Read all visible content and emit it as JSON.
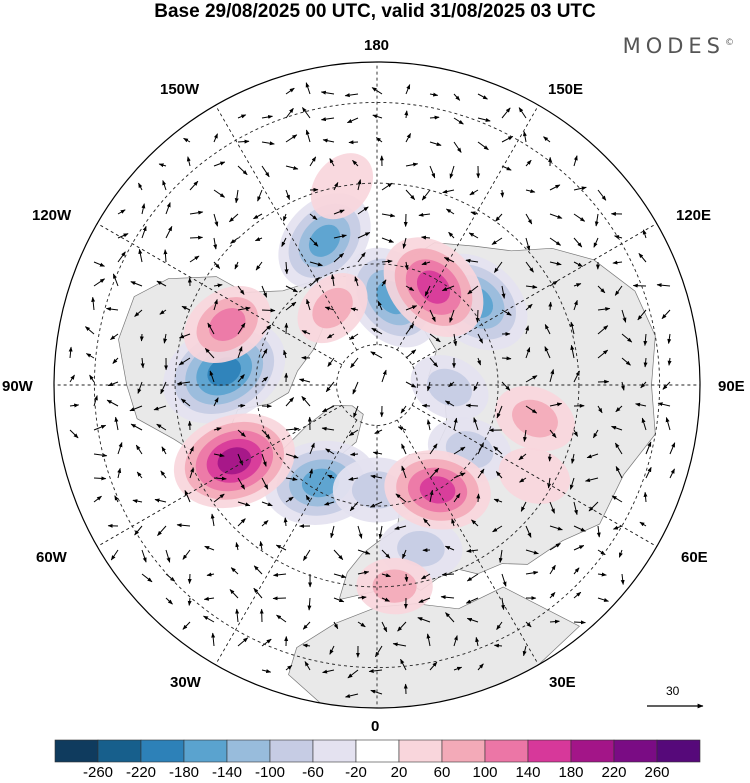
{
  "title": "Base 29/08/2025 00 UTC, valid 31/08/2025 03 UTC",
  "brand": "MODES",
  "brand_mark": "©",
  "longitude_labels": {
    "top": "180",
    "bottom": "0",
    "left": "90W",
    "right": "90E",
    "upper_left": "150W",
    "upper_right": "150E",
    "mid_left": "120W",
    "mid_right": "120E",
    "lower_left": "60W",
    "lower_right": "60E",
    "bottom_left": "30W",
    "bottom_right": "30E"
  },
  "reference_vector": {
    "label": "30"
  },
  "colorbar": {
    "ticks": [
      "-260",
      "-220",
      "-180",
      "-140",
      "-100",
      "-60",
      "-20",
      "20",
      "60",
      "100",
      "140",
      "180",
      "220",
      "260"
    ],
    "colors": [
      "#0f3b5e",
      "#175f8c",
      "#2d81b8",
      "#5aa3cf",
      "#98bcdc",
      "#c6cce4",
      "#e4e2f0",
      "#ffffff",
      "#f9d6dc",
      "#f3aab8",
      "#ec76a6",
      "#d7389a",
      "#a31588",
      "#7a0c84",
      "#56097a"
    ]
  },
  "anomaly_centers": {
    "negative": [
      {
        "lon": -95,
        "lat": 52,
        "value": -215
      },
      {
        "lon": -160,
        "lat": 52,
        "value": -150
      },
      {
        "lon": 170,
        "lat": 68,
        "value": -160
      },
      {
        "lon": 130,
        "lat": 58,
        "value": -170
      },
      {
        "lon": -30,
        "lat": 62,
        "value": -170
      },
      {
        "lon": 0,
        "lat": 64,
        "value": -95
      },
      {
        "lon": 55,
        "lat": 62,
        "value": -85
      },
      {
        "lon": 15,
        "lat": 48,
        "value": -80
      },
      {
        "lon": 88,
        "lat": 72,
        "value": -75
      }
    ],
    "positive": [
      {
        "lon": -62,
        "lat": 50,
        "value": 200
      },
      {
        "lon": 150,
        "lat": 62,
        "value": 170
      },
      {
        "lon": 30,
        "lat": 60,
        "value": 150
      },
      {
        "lon": -112,
        "lat": 50,
        "value": 110
      },
      {
        "lon": 78,
        "lat": 50,
        "value": 80
      },
      {
        "lon": 5,
        "lat": 40,
        "value": 60
      },
      {
        "lon": -170,
        "lat": 40,
        "value": 50
      },
      {
        "lon": -150,
        "lat": 68,
        "value": 70
      },
      {
        "lon": 60,
        "lat": 45,
        "value": 50
      }
    ]
  }
}
